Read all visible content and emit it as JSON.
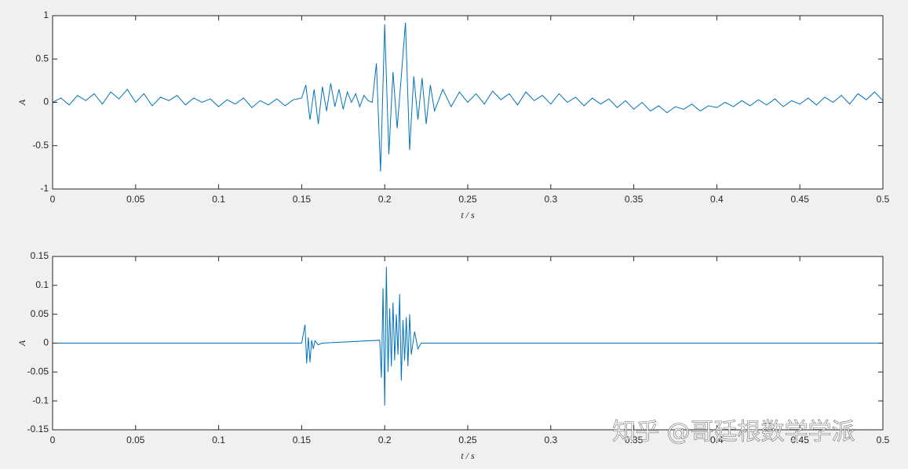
{
  "chart_data": [
    {
      "type": "line",
      "xlabel": "t / s",
      "ylabel": "A",
      "color": "#0072bd",
      "x": [
        0,
        0.005,
        0.01,
        0.015,
        0.02,
        0.025,
        0.03,
        0.035,
        0.04,
        0.045,
        0.05,
        0.055,
        0.06,
        0.065,
        0.07,
        0.075,
        0.08,
        0.085,
        0.09,
        0.095,
        0.1,
        0.105,
        0.11,
        0.115,
        0.12,
        0.125,
        0.13,
        0.135,
        0.14,
        0.145,
        0.15,
        0.1525,
        0.155,
        0.1575,
        0.16,
        0.1625,
        0.165,
        0.1675,
        0.17,
        0.1725,
        0.175,
        0.1775,
        0.18,
        0.1825,
        0.185,
        0.1875,
        0.19,
        0.1925,
        0.195,
        0.1975,
        0.2,
        0.2025,
        0.205,
        0.2075,
        0.21,
        0.2125,
        0.215,
        0.2175,
        0.22,
        0.2225,
        0.225,
        0.2275,
        0.23,
        0.235,
        0.24,
        0.245,
        0.25,
        0.255,
        0.26,
        0.265,
        0.27,
        0.275,
        0.28,
        0.285,
        0.29,
        0.295,
        0.3,
        0.305,
        0.31,
        0.315,
        0.32,
        0.325,
        0.33,
        0.335,
        0.34,
        0.345,
        0.35,
        0.355,
        0.36,
        0.365,
        0.37,
        0.375,
        0.38,
        0.385,
        0.39,
        0.395,
        0.4,
        0.405,
        0.41,
        0.415,
        0.42,
        0.425,
        0.43,
        0.435,
        0.44,
        0.445,
        0.45,
        0.455,
        0.46,
        0.465,
        0.47,
        0.475,
        0.48,
        0.485,
        0.49,
        0.495,
        0.5
      ],
      "values": [
        0.0,
        0.05,
        -0.03,
        0.08,
        0.02,
        0.1,
        -0.02,
        0.12,
        0.04,
        0.15,
        0.0,
        0.1,
        -0.04,
        0.06,
        0.02,
        0.08,
        -0.03,
        0.05,
        0.0,
        0.04,
        -0.05,
        0.03,
        -0.02,
        0.05,
        -0.06,
        0.02,
        -0.03,
        0.04,
        -0.04,
        0.03,
        0.05,
        0.2,
        -0.2,
        0.15,
        -0.25,
        0.18,
        -0.1,
        0.22,
        -0.05,
        0.15,
        -0.08,
        0.12,
        0.0,
        0.1,
        -0.05,
        0.08,
        0.02,
        0.0,
        0.45,
        -0.8,
        0.9,
        -0.6,
        0.35,
        -0.3,
        0.3,
        0.92,
        -0.55,
        0.3,
        -0.2,
        0.28,
        -0.25,
        0.2,
        -0.1,
        0.15,
        -0.05,
        0.12,
        0.0,
        0.1,
        -0.02,
        0.13,
        0.03,
        0.1,
        -0.03,
        0.12,
        0.02,
        0.08,
        -0.02,
        0.1,
        0.0,
        0.06,
        -0.04,
        0.05,
        -0.02,
        0.04,
        -0.06,
        0.02,
        -0.08,
        0.0,
        -0.1,
        -0.04,
        -0.12,
        -0.05,
        -0.08,
        -0.02,
        -0.1,
        -0.04,
        -0.06,
        0.0,
        -0.05,
        0.02,
        -0.04,
        0.03,
        -0.03,
        0.04,
        -0.05,
        0.02,
        -0.02,
        0.05,
        -0.03,
        0.06,
        0.0,
        0.08,
        -0.02,
        0.1,
        0.03,
        0.12,
        0.02
      ],
      "xlim": [
        0,
        0.5
      ],
      "xticks": [
        0,
        0.05,
        0.1,
        0.15,
        0.2,
        0.25,
        0.3,
        0.35,
        0.4,
        0.45,
        0.5
      ],
      "ylim": [
        -1,
        1
      ],
      "yticks": [
        -1,
        -0.5,
        0,
        0.5,
        1
      ]
    },
    {
      "type": "line",
      "xlabel": "t / s",
      "ylabel": "A",
      "color": "#0072bd",
      "x": [
        0,
        0.15,
        0.152,
        0.153,
        0.154,
        0.155,
        0.156,
        0.157,
        0.158,
        0.16,
        0.162,
        0.197,
        0.198,
        0.199,
        0.2,
        0.201,
        0.202,
        0.203,
        0.204,
        0.205,
        0.206,
        0.207,
        0.208,
        0.209,
        0.21,
        0.211,
        0.212,
        0.213,
        0.214,
        0.215,
        0.216,
        0.218,
        0.22,
        0.222,
        0.5
      ],
      "values": [
        0,
        0,
        0.032,
        -0.035,
        0.01,
        -0.033,
        0.005,
        -0.01,
        0.004,
        -0.003,
        0,
        0.005,
        -0.06,
        0.095,
        -0.108,
        0.132,
        -0.05,
        0.06,
        -0.04,
        0.07,
        -0.03,
        0.05,
        -0.02,
        0.085,
        -0.065,
        0.04,
        -0.03,
        0.045,
        -0.04,
        0.05,
        -0.02,
        0.02,
        -0.01,
        0,
        0
      ],
      "xlim": [
        0,
        0.5
      ],
      "xticks": [
        0,
        0.05,
        0.1,
        0.15,
        0.2,
        0.25,
        0.3,
        0.35,
        0.4,
        0.45,
        0.5
      ],
      "ylim": [
        -0.15,
        0.15
      ],
      "yticks": [
        -0.15,
        -0.1,
        -0.05,
        0,
        0.05,
        0.1,
        0.15
      ]
    }
  ],
  "watermark": "知乎 @哥廷根数学学派"
}
